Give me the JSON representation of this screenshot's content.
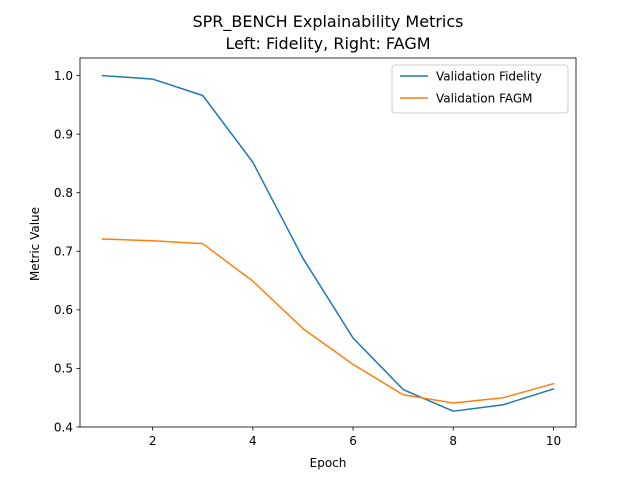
{
  "chart_data": {
    "type": "line",
    "title": "SPR_BENCH Explainability Metrics",
    "subtitle": "Left: Fidelity, Right: FAGM",
    "xlabel": "Epoch",
    "ylabel": "Metric Value",
    "x": [
      1,
      2,
      3,
      4,
      5,
      6,
      7,
      8,
      9,
      10
    ],
    "xlim": [
      0.55,
      10.45
    ],
    "ylim": [
      0.4,
      1.03
    ],
    "xticks": [
      2,
      4,
      6,
      8,
      10
    ],
    "yticks": [
      0.4,
      0.5,
      0.6,
      0.7,
      0.8,
      0.9,
      1.0
    ],
    "ytick_labels": [
      "0.4",
      "0.5",
      "0.6",
      "0.7",
      "0.8",
      "0.9",
      "1.0"
    ],
    "grid": false,
    "legend_position": "top-right",
    "series": [
      {
        "name": "Validation Fidelity",
        "color": "#1f77b4",
        "values": [
          1.0,
          0.994,
          0.966,
          0.852,
          0.688,
          0.552,
          0.464,
          0.427,
          0.438,
          0.465
        ]
      },
      {
        "name": "Validation FAGM",
        "color": "#ff7f0e",
        "values": [
          0.721,
          0.718,
          0.713,
          0.649,
          0.568,
          0.507,
          0.455,
          0.441,
          0.45,
          0.474
        ]
      }
    ]
  }
}
